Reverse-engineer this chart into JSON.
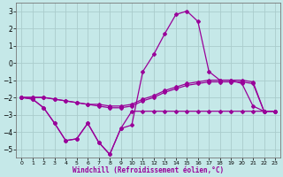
{
  "xlabel": "Windchill (Refroidissement éolien,°C)",
  "background_color": "#c5e8e8",
  "grid_color": "#aacccc",
  "line_color": "#990099",
  "xlim": [
    -0.5,
    23.5
  ],
  "ylim": [
    -5.5,
    3.5
  ],
  "yticks": [
    -5,
    -4,
    -3,
    -2,
    -1,
    0,
    1,
    2,
    3
  ],
  "xticks": [
    0,
    1,
    2,
    3,
    4,
    5,
    6,
    7,
    8,
    9,
    10,
    11,
    12,
    13,
    14,
    15,
    16,
    17,
    18,
    19,
    20,
    21,
    22,
    23
  ],
  "series1_x": [
    0,
    1,
    2,
    3,
    4,
    5,
    6,
    7,
    8,
    9,
    10,
    11,
    12,
    13,
    14,
    15,
    16,
    17,
    18,
    19,
    20,
    21,
    22,
    23
  ],
  "series1_y": [
    -2.0,
    -2.1,
    -2.6,
    -3.5,
    -4.5,
    -4.4,
    -3.5,
    -4.6,
    -5.3,
    -3.8,
    -2.8,
    -2.8,
    -2.8,
    -2.8,
    -2.8,
    -2.8,
    -2.8,
    -2.8,
    -2.8,
    -2.8,
    -2.8,
    -2.8,
    -2.8,
    -2.8
  ],
  "series2_x": [
    0,
    1,
    2,
    3,
    4,
    5,
    6,
    7,
    8,
    9,
    10,
    11,
    12,
    13,
    14,
    15,
    16,
    17,
    18,
    19,
    20,
    21,
    22,
    23
  ],
  "series2_y": [
    -2.0,
    -2.1,
    -2.6,
    -3.5,
    -4.5,
    -4.4,
    -3.5,
    -4.6,
    -5.3,
    -3.8,
    -3.6,
    -0.5,
    0.5,
    1.7,
    2.8,
    3.0,
    2.4,
    -0.5,
    -1.0,
    -1.0,
    -1.2,
    -2.5,
    -2.8,
    -2.8
  ],
  "series3_x": [
    0,
    1,
    2,
    3,
    4,
    5,
    6,
    7,
    8,
    9,
    10,
    11,
    12,
    13,
    14,
    15,
    16,
    17,
    18,
    19,
    20,
    21,
    22,
    23
  ],
  "series3_y": [
    -2.0,
    -2.0,
    -2.0,
    -2.1,
    -2.2,
    -2.3,
    -2.4,
    -2.5,
    -2.6,
    -2.6,
    -2.5,
    -2.2,
    -2.0,
    -1.7,
    -1.5,
    -1.3,
    -1.2,
    -1.1,
    -1.1,
    -1.1,
    -1.1,
    -1.2,
    -2.8,
    -2.8
  ],
  "series4_x": [
    0,
    1,
    2,
    3,
    4,
    5,
    6,
    7,
    8,
    9,
    10,
    11,
    12,
    13,
    14,
    15,
    16,
    17,
    18,
    19,
    20,
    21,
    22,
    23
  ],
  "series4_y": [
    -2.0,
    -2.0,
    -2.0,
    -2.1,
    -2.2,
    -2.3,
    -2.4,
    -2.4,
    -2.5,
    -2.5,
    -2.4,
    -2.1,
    -1.9,
    -1.6,
    -1.4,
    -1.2,
    -1.1,
    -1.0,
    -1.0,
    -1.0,
    -1.0,
    -1.1,
    -2.8,
    -2.8
  ]
}
